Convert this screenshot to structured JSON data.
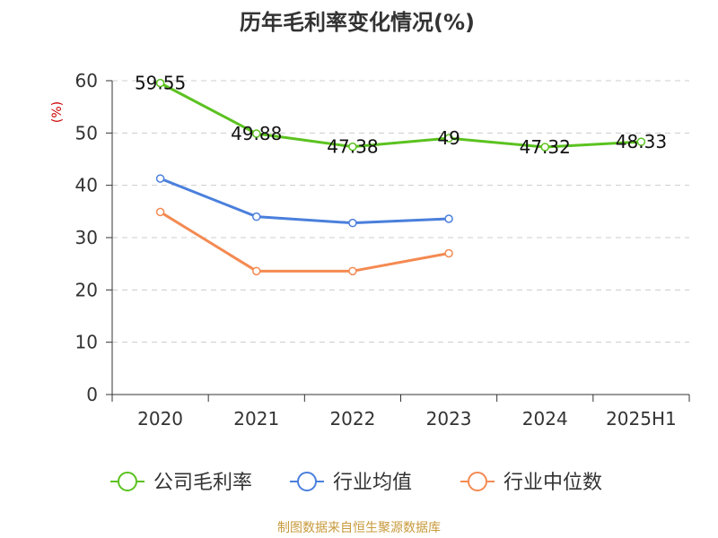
{
  "chart_data": {
    "type": "line",
    "title": "历年毛利率变化情况(%)",
    "ylabel": "(%)",
    "categories": [
      "2020",
      "2021",
      "2022",
      "2023",
      "2024",
      "2025H1"
    ],
    "yticks": [
      "0",
      "10",
      "20",
      "30",
      "40",
      "50",
      "60"
    ],
    "ylim": [
      0,
      60
    ],
    "grid": true,
    "legend_position": "bottom",
    "series": [
      {
        "name": "公司毛利率",
        "color": "#5bc21f",
        "values": [
          59.55,
          49.88,
          47.38,
          49,
          47.32,
          48.33
        ],
        "labels": [
          "59.55",
          "49.88",
          "47.38",
          "49",
          "47.32",
          "48.33"
        ]
      },
      {
        "name": "行业均值",
        "color": "#4a7fdc",
        "values": [
          41.3,
          34.0,
          32.8,
          33.6,
          null,
          null
        ]
      },
      {
        "name": "行业中位数",
        "color": "#f48a52",
        "values": [
          34.9,
          23.6,
          23.6,
          27.0,
          null,
          null
        ]
      }
    ]
  },
  "footer": "制图数据来自恒生聚源数据库"
}
